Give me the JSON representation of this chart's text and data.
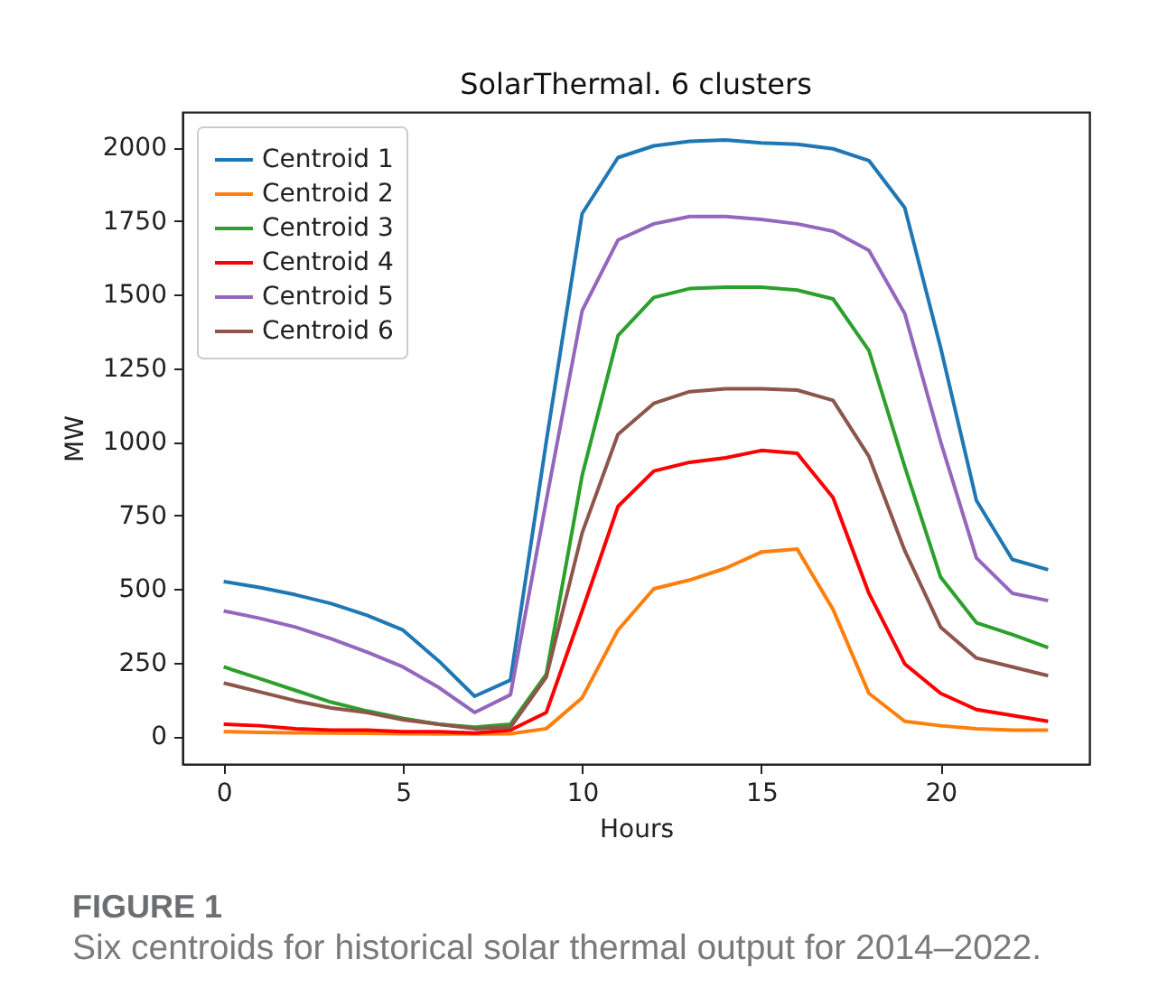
{
  "chart_data": {
    "type": "line",
    "title": "SolarThermal. 6 clusters",
    "xlabel": "Hours",
    "ylabel": "MW",
    "x": [
      0,
      1,
      2,
      3,
      4,
      5,
      6,
      7,
      8,
      9,
      10,
      11,
      12,
      13,
      14,
      15,
      16,
      17,
      18,
      19,
      20,
      21,
      22,
      23
    ],
    "series": [
      {
        "name": "Centroid 1",
        "color": "#1f77b4",
        "values": [
          525,
          505,
          480,
          450,
          410,
          360,
          255,
          135,
          190,
          1000,
          1775,
          1965,
          2005,
          2020,
          2025,
          2015,
          2010,
          1995,
          1955,
          1795,
          1320,
          800,
          600,
          565
        ]
      },
      {
        "name": "Centroid 2",
        "color": "#ff7f0e",
        "values": [
          15,
          12,
          11,
          10,
          9,
          8,
          7,
          7,
          8,
          25,
          130,
          360,
          500,
          530,
          570,
          625,
          635,
          430,
          145,
          50,
          35,
          25,
          20,
          20
        ]
      },
      {
        "name": "Centroid 3",
        "color": "#2ca02c",
        "values": [
          235,
          195,
          155,
          115,
          85,
          60,
          40,
          30,
          40,
          210,
          885,
          1360,
          1490,
          1520,
          1525,
          1525,
          1515,
          1485,
          1310,
          915,
          540,
          385,
          345,
          300
        ]
      },
      {
        "name": "Centroid 4",
        "color": "#ff0000",
        "values": [
          40,
          35,
          25,
          20,
          20,
          15,
          15,
          10,
          20,
          80,
          425,
          780,
          900,
          930,
          945,
          970,
          960,
          810,
          485,
          245,
          145,
          90,
          70,
          50
        ]
      },
      {
        "name": "Centroid 5",
        "color": "#9467bd",
        "values": [
          425,
          400,
          370,
          330,
          285,
          235,
          165,
          80,
          140,
          800,
          1445,
          1685,
          1740,
          1765,
          1765,
          1755,
          1740,
          1715,
          1650,
          1435,
          1000,
          605,
          485,
          460
        ]
      },
      {
        "name": "Centroid 6",
        "color": "#8c564b",
        "values": [
          180,
          150,
          120,
          95,
          80,
          55,
          40,
          25,
          30,
          200,
          690,
          1025,
          1130,
          1170,
          1180,
          1180,
          1175,
          1140,
          950,
          630,
          370,
          265,
          235,
          205
        ]
      }
    ],
    "xlim": [
      -1.15,
      24.15
    ],
    "xticks": [
      0,
      5,
      10,
      15,
      20
    ],
    "ylim": [
      -95,
      2120
    ],
    "yticks": [
      0,
      250,
      500,
      750,
      1000,
      1250,
      1500,
      1750,
      2000
    ],
    "grid": false,
    "legend": "top left",
    "line_style": "solid",
    "annotations": [
      "FIGURE 1",
      "Six centroids for historical solar thermal output for 2014–2022."
    ]
  }
}
